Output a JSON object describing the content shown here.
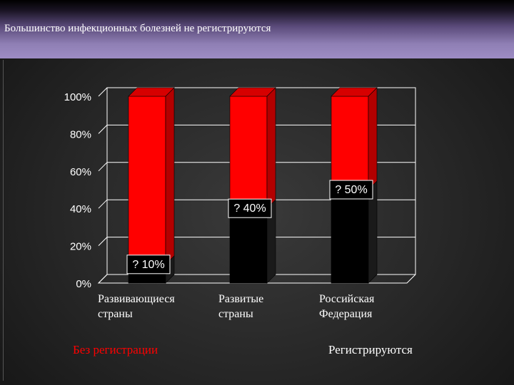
{
  "slide": {
    "title": "Большинство инфекционных болезней не регистрируются"
  },
  "colors": {
    "unregistered": "#ff0000",
    "registered": "#000000"
  },
  "chart_data": {
    "type": "bar",
    "stacked": true,
    "percent_stacked": true,
    "categories_lines": [
      [
        "Развивающиеся",
        "страны"
      ],
      [
        "Развитые",
        "страны"
      ],
      [
        "Российская",
        "Федерация"
      ]
    ],
    "series": [
      {
        "name": "Регистрируются",
        "values": [
          10,
          40,
          50
        ]
      },
      {
        "name": "Без регистрации",
        "values": [
          90,
          60,
          50
        ]
      }
    ],
    "data_labels": [
      "? 10%",
      "? 40%",
      "? 50%"
    ],
    "y_ticks": [
      "0%",
      "20%",
      "40%",
      "60%",
      "80%",
      "100%"
    ],
    "ylim": [
      0,
      100
    ],
    "grid": true,
    "legend_placement": "bottom"
  }
}
